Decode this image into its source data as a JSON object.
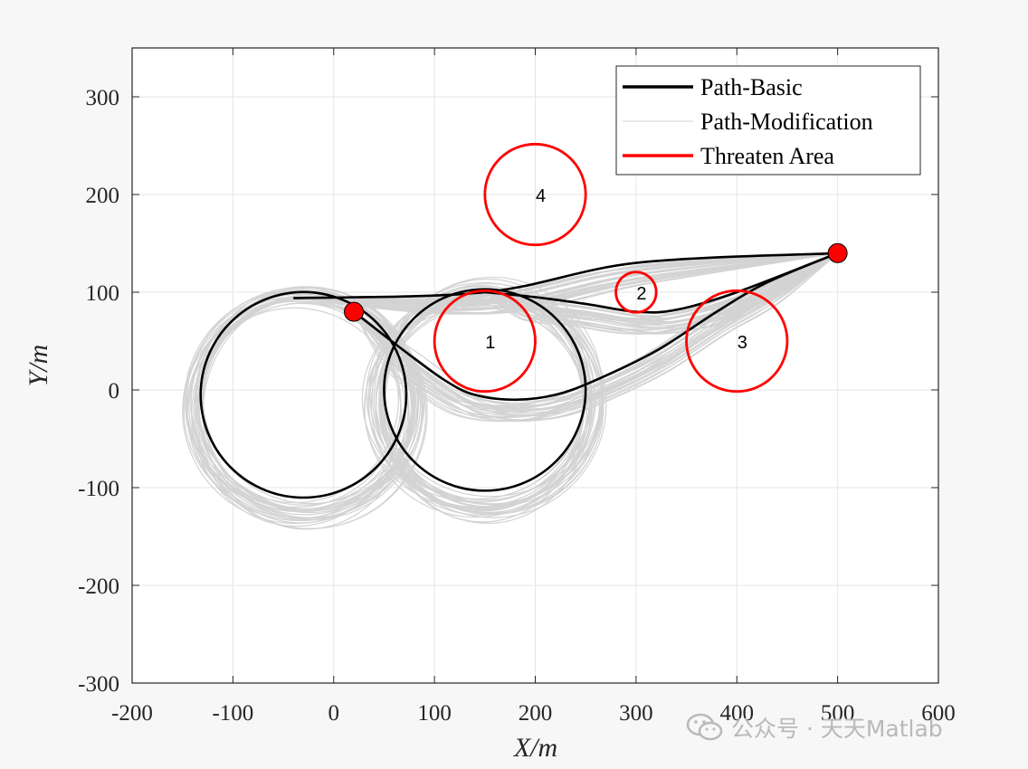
{
  "chart_data": {
    "type": "line",
    "xlabel": "X/m",
    "ylabel": "Y/m",
    "xlim": [
      -200,
      600
    ],
    "ylim": [
      -300,
      350
    ],
    "xticks": [
      -200,
      -100,
      0,
      100,
      200,
      300,
      400,
      500,
      600
    ],
    "yticks": [
      -300,
      -200,
      -100,
      0,
      100,
      200,
      300
    ],
    "grid": true,
    "legend_position": "top-right",
    "legend": [
      {
        "label": "Path-Basic",
        "color": "#000000"
      },
      {
        "label": "Path-Modification",
        "color": "#d3d3d3"
      },
      {
        "label": "Threaten Area",
        "color": "#ff0000"
      }
    ],
    "series": [
      {
        "name": "Path-Basic",
        "color": "#000000",
        "paths": [
          [
            [
              20,
              80
            ],
            [
              70,
              40
            ],
            [
              110,
              10
            ],
            [
              140,
              -5
            ],
            [
              180,
              -10
            ],
            [
              220,
              -5
            ],
            [
              260,
              10
            ],
            [
              320,
              40
            ],
            [
              380,
              80
            ],
            [
              430,
              110
            ],
            [
              500,
              140
            ]
          ],
          [
            [
              500,
              140
            ],
            [
              300,
              130
            ],
            [
              150,
              100
            ],
            [
              -40,
              94
            ]
          ],
          [
            [
              150,
              100
            ],
            [
              200,
              95
            ],
            [
              250,
              88
            ],
            [
              300,
              80
            ],
            [
              340,
              82
            ],
            [
              400,
              100
            ],
            [
              500,
              140
            ]
          ]
        ],
        "circles": [
          {
            "center": [
              -30,
              -5
            ],
            "radius": 102
          },
          {
            "center": [
              150,
              0
            ],
            "radius": 100
          }
        ]
      },
      {
        "name": "Path-Modification",
        "color": "#d3d3d3",
        "envelope": {
          "x_range": [
            -160,
            500
          ],
          "y_range": [
            -140,
            140
          ]
        }
      }
    ],
    "threat_areas": [
      {
        "id": "1",
        "center": [
          150,
          50
        ],
        "radius": 50
      },
      {
        "id": "2",
        "center": [
          300,
          100
        ],
        "radius": 20
      },
      {
        "id": "3",
        "center": [
          400,
          50
        ],
        "radius": 50
      },
      {
        "id": "4",
        "center": [
          200,
          200
        ],
        "radius": 50
      }
    ],
    "markers": [
      {
        "point": [
          20,
          80
        ],
        "color": "#ff0000"
      },
      {
        "point": [
          500,
          140
        ],
        "color": "#ff0000"
      }
    ]
  },
  "watermark": {
    "text": "公众号 · 天天Matlab",
    "icon": "wechat-icon"
  }
}
